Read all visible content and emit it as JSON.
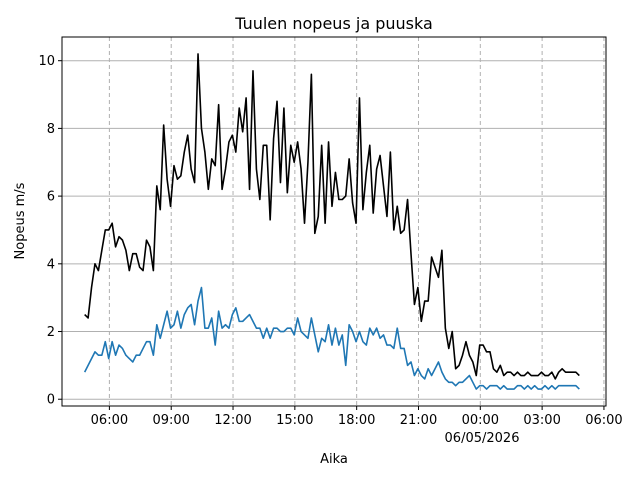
{
  "chart_data": {
    "type": "line",
    "title": "Tuulen nopeus ja puuska",
    "xlabel": "Aika",
    "ylabel": "Nopeus m/s",
    "date_label": "06/05/2026",
    "x_ticks": [
      "06:00",
      "09:00",
      "12:00",
      "15:00",
      "18:00",
      "21:00",
      "00:00",
      "03:00",
      "06:00"
    ],
    "y_ticks": [
      "0",
      "2",
      "4",
      "6",
      "8",
      "10"
    ],
    "ylim": [
      -0.2,
      10.7
    ],
    "xlim_hours": [
      3.7,
      30.1
    ],
    "x_tick_hours": [
      6,
      9,
      12,
      15,
      18,
      21,
      24,
      27,
      30
    ],
    "grid": {
      "horizontal": "solid",
      "vertical": "dashed"
    },
    "x_start_hour": 4.8,
    "x_step_hours": 0.1667,
    "series": [
      {
        "color": "#000000",
        "values": [
          2.5,
          2.4,
          3.3,
          4.0,
          3.8,
          4.4,
          5.0,
          5.0,
          5.2,
          4.5,
          4.8,
          4.7,
          4.4,
          3.8,
          4.3,
          4.3,
          3.9,
          3.8,
          4.7,
          4.5,
          3.8,
          6.3,
          5.6,
          8.1,
          6.5,
          5.7,
          6.9,
          6.5,
          6.6,
          7.3,
          7.8,
          6.8,
          6.4,
          10.2,
          8.0,
          7.3,
          6.2,
          7.1,
          6.9,
          8.7,
          6.2,
          6.8,
          7.6,
          7.8,
          7.3,
          8.6,
          7.9,
          8.9,
          6.2,
          9.7,
          6.8,
          5.9,
          7.5,
          7.5,
          5.3,
          7.7,
          8.8,
          6.4,
          8.6,
          6.1,
          7.5,
          7.0,
          7.6,
          6.8,
          5.2,
          7.0,
          9.6,
          4.9,
          5.4,
          7.5,
          5.2,
          7.6,
          5.7,
          6.7,
          5.9,
          5.9,
          6.0,
          7.1,
          5.8,
          5.2,
          8.9,
          5.6,
          6.7,
          7.5,
          5.5,
          6.8,
          7.2,
          6.3,
          5.4,
          7.3,
          5.0,
          5.7,
          4.9,
          5.0,
          5.9,
          4.3,
          2.8,
          3.3,
          2.3,
          2.9,
          2.9,
          4.2,
          3.9,
          3.6,
          4.4,
          2.1,
          1.5,
          2.0,
          0.9,
          1.0,
          1.3,
          1.7,
          1.3,
          1.1,
          0.7,
          1.6,
          1.6,
          1.4,
          1.4,
          0.9,
          0.8,
          1.0,
          0.7,
          0.8,
          0.8,
          0.7,
          0.8,
          0.7,
          0.7,
          0.8,
          0.7,
          0.7,
          0.7,
          0.8,
          0.7,
          0.7,
          0.8,
          0.6,
          0.8,
          0.9,
          0.8,
          0.8,
          0.8,
          0.8,
          0.7
        ]
      },
      {
        "color": "#1f77b4",
        "values": [
          0.8,
          1.0,
          1.2,
          1.4,
          1.3,
          1.3,
          1.7,
          1.2,
          1.7,
          1.3,
          1.6,
          1.5,
          1.3,
          1.2,
          1.1,
          1.3,
          1.3,
          1.5,
          1.7,
          1.7,
          1.3,
          2.2,
          1.8,
          2.2,
          2.6,
          2.1,
          2.2,
          2.6,
          2.1,
          2.5,
          2.7,
          2.8,
          2.2,
          2.9,
          3.3,
          2.1,
          2.1,
          2.4,
          1.6,
          2.6,
          2.1,
          2.2,
          2.1,
          2.5,
          2.7,
          2.3,
          2.3,
          2.4,
          2.5,
          2.3,
          2.1,
          2.1,
          1.8,
          2.1,
          1.8,
          2.1,
          2.1,
          2.0,
          2.0,
          2.1,
          2.1,
          1.9,
          2.4,
          2.0,
          1.9,
          1.8,
          2.4,
          1.9,
          1.4,
          1.8,
          1.7,
          2.2,
          1.6,
          2.1,
          1.6,
          1.9,
          1.0,
          2.2,
          2.0,
          1.7,
          2.0,
          1.7,
          1.6,
          2.1,
          1.9,
          2.1,
          1.8,
          1.9,
          1.6,
          1.6,
          1.5,
          2.1,
          1.5,
          1.5,
          1.0,
          1.1,
          0.7,
          0.9,
          0.7,
          0.6,
          0.9,
          0.7,
          0.9,
          1.1,
          0.8,
          0.6,
          0.5,
          0.5,
          0.4,
          0.5,
          0.5,
          0.6,
          0.7,
          0.5,
          0.3,
          0.4,
          0.4,
          0.3,
          0.4,
          0.4,
          0.4,
          0.3,
          0.4,
          0.3,
          0.3,
          0.3,
          0.4,
          0.4,
          0.3,
          0.4,
          0.3,
          0.4,
          0.3,
          0.3,
          0.4,
          0.3,
          0.4,
          0.3,
          0.4,
          0.4,
          0.4,
          0.4,
          0.4,
          0.4,
          0.3
        ]
      }
    ]
  }
}
